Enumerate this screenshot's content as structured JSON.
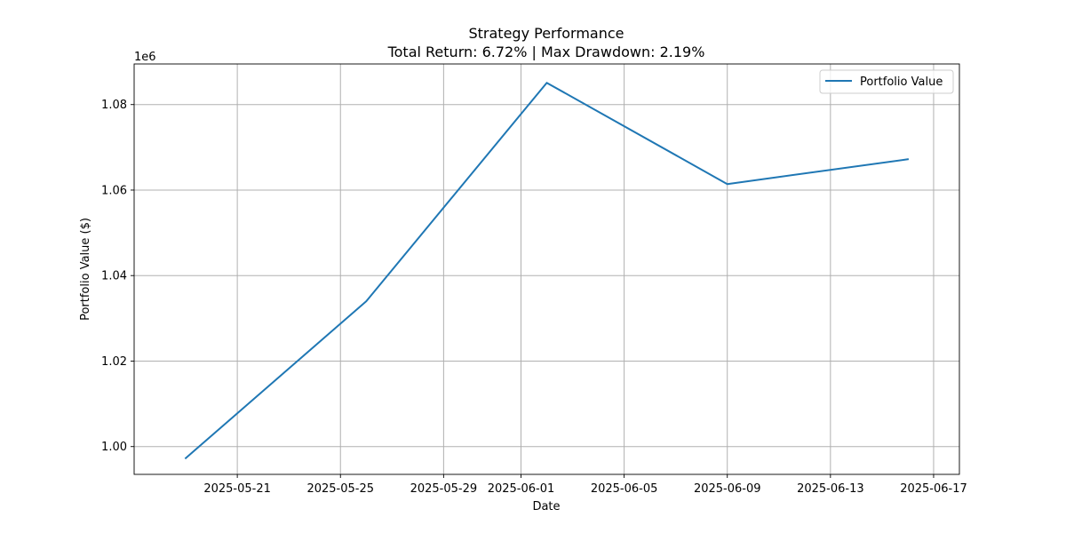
{
  "chart_data": {
    "type": "line",
    "title": "Strategy Performance",
    "subtitle": "Total Return: 6.72% | Max Drawdown: 2.19%",
    "xlabel": "Date",
    "ylabel": "Portfolio Value ($)",
    "y_offset_label": "1e6",
    "x_tick_labels": [
      "2025-05-21",
      "2025-05-25",
      "2025-05-29",
      "2025-06-01",
      "2025-06-05",
      "2025-06-09",
      "2025-06-13",
      "2025-06-17"
    ],
    "y_tick_labels": [
      "1.00",
      "1.02",
      "1.04",
      "1.06",
      "1.08"
    ],
    "y_ticks": [
      1000000,
      1020000,
      1040000,
      1060000,
      1080000
    ],
    "xlim": [
      "2025-05-17",
      "2025-06-18"
    ],
    "ylim": [
      993500,
      1089500
    ],
    "grid": true,
    "legend_position": "top-right",
    "series": [
      {
        "name": "Portfolio Value",
        "color": "#1f77b4",
        "x": [
          "2025-05-19",
          "2025-05-26",
          "2025-06-02",
          "2025-06-09",
          "2025-06-16"
        ],
        "y": [
          997300,
          1034000,
          1085100,
          1061400,
          1067200
        ]
      }
    ]
  }
}
